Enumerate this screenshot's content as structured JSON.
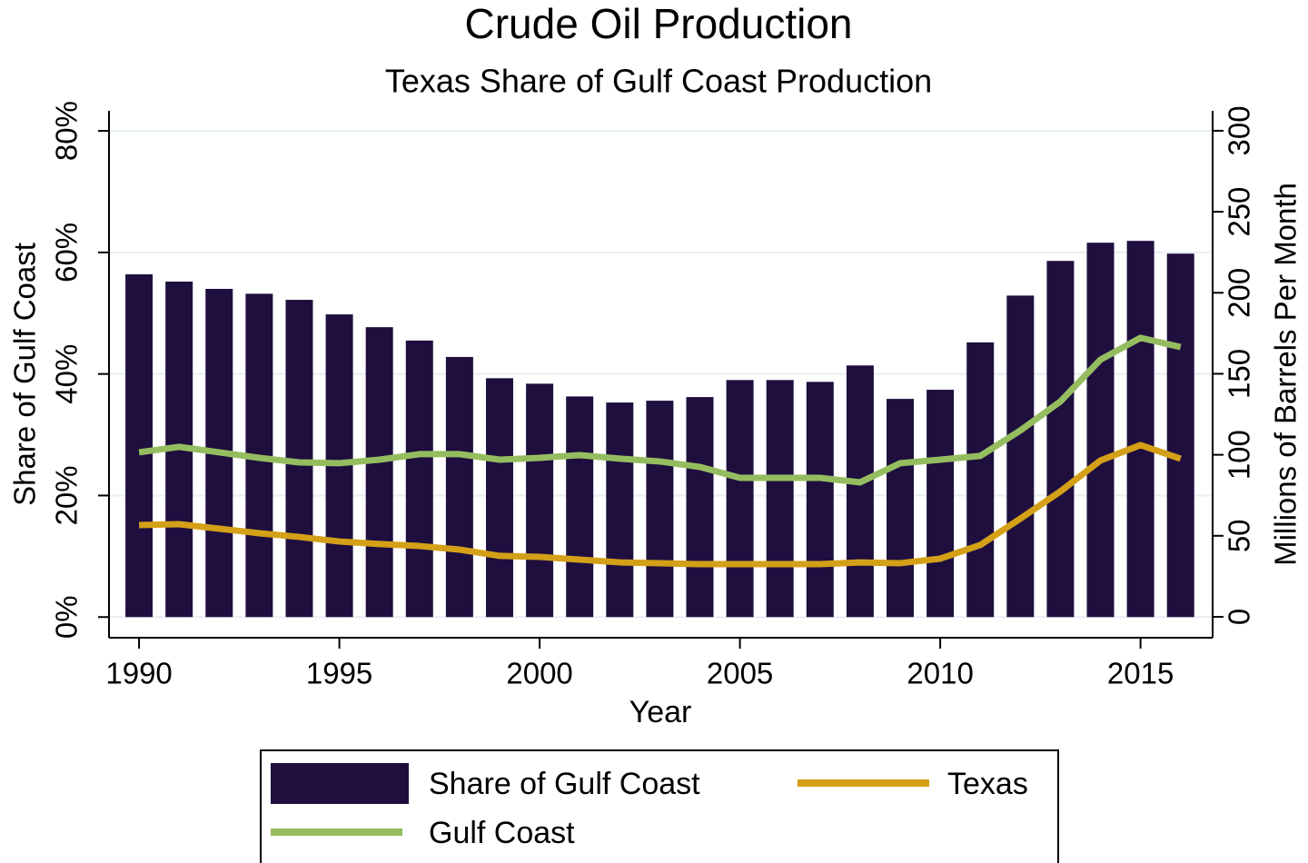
{
  "chart_data": {
    "type": "bar-line",
    "title": "Crude Oil Production",
    "subtitle": "Texas Share of Gulf Coast Production",
    "x_label": "Year",
    "y_label": "Share of Gulf Coast",
    "y2_label": "Millions of Barrels Per Month",
    "x": [
      1990,
      1991,
      1992,
      1993,
      1994,
      1995,
      1996,
      1997,
      1998,
      1999,
      2000,
      2001,
      2002,
      2003,
      2004,
      2005,
      2006,
      2007,
      2008,
      2009,
      2010,
      2011,
      2012,
      2013,
      2014,
      2015,
      2016
    ],
    "xlim": [
      1989.25,
      2016.8
    ],
    "xticks": [
      1990,
      1995,
      2000,
      2005,
      2010,
      2015
    ],
    "ylim": [
      -3.4,
      83.3
    ],
    "yticks": [
      {
        "value": 0,
        "label": "0%"
      },
      {
        "value": 20,
        "label": "20%"
      },
      {
        "value": 40,
        "label": "40%"
      },
      {
        "value": 60,
        "label": "60%"
      },
      {
        "value": 80,
        "label": "80%"
      }
    ],
    "y2lim": [
      -12.9,
      312.3
    ],
    "y2ticks": [
      0,
      50,
      100,
      150,
      200,
      250,
      300
    ],
    "grid": true,
    "series": [
      {
        "name": "Share of Gulf Coast",
        "type": "bar",
        "axis": "y",
        "color": "#1f0f3f",
        "values": [
          56.4,
          55.2,
          54.0,
          53.2,
          52.2,
          49.8,
          47.7,
          45.5,
          42.8,
          39.3,
          38.4,
          36.3,
          35.3,
          35.6,
          36.2,
          39.0,
          39.0,
          38.7,
          41.4,
          35.9,
          37.4,
          45.2,
          52.9,
          58.6,
          61.6,
          61.9,
          59.8
        ]
      },
      {
        "name": "Texas",
        "type": "line",
        "axis": "y2",
        "color": "#d4a017",
        "values": [
          56.6,
          57.2,
          54.4,
          51.6,
          49.3,
          46.5,
          44.9,
          43.7,
          41.5,
          37.6,
          37.0,
          35.3,
          33.6,
          33.1,
          32.5,
          32.5,
          32.5,
          32.5,
          33.6,
          33.1,
          35.9,
          44.3,
          60.6,
          77.4,
          96.5,
          106.0,
          97.6
        ]
      },
      {
        "name": "Gulf Coast",
        "type": "line",
        "axis": "y2",
        "color": "#95bd5f",
        "values": [
          101.5,
          104.9,
          101.5,
          98.1,
          95.3,
          94.8,
          97.0,
          100.4,
          100.4,
          97.0,
          98.1,
          99.8,
          97.6,
          95.9,
          92.5,
          85.8,
          85.8,
          85.8,
          83.0,
          94.8,
          97.0,
          99.3,
          115.0,
          132.9,
          158.7,
          172.2,
          166.5
        ]
      }
    ]
  }
}
